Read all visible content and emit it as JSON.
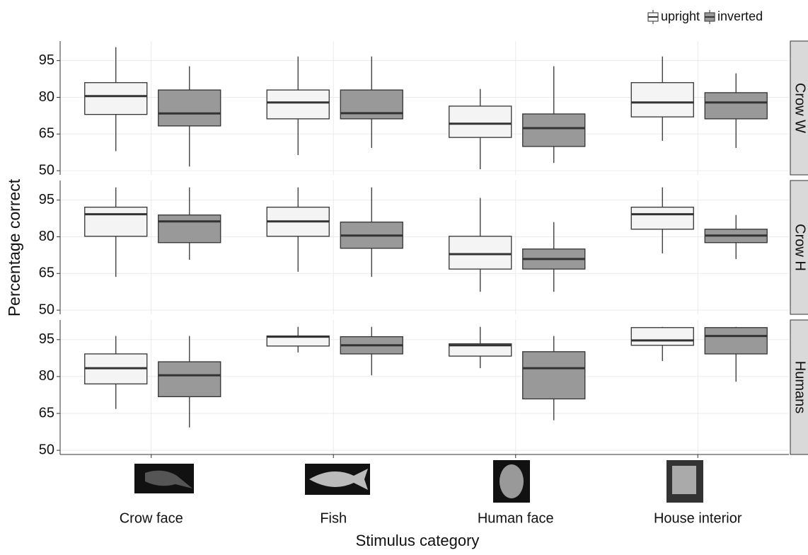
{
  "chart_data": {
    "type": "box",
    "x_label": "Stimulus category",
    "y_label": "Percentage correct",
    "categories": [
      "Crow face",
      "Fish",
      "Human face",
      "House interior"
    ],
    "facets": [
      "Crow W",
      "Crow H",
      "Humans"
    ],
    "ylim": [
      48.3,
      103
    ],
    "yticks": [
      50,
      65,
      80,
      95
    ],
    "grid": true,
    "legend": "top-right",
    "series": [
      {
        "name": "upright",
        "color": "#f4f4f4",
        "values": [
          [
            {
              "min": 58,
              "q1": 73,
              "median": 80.5,
              "q3": 86,
              "max": 100.5
            },
            {
              "min": 56.4,
              "q1": 71.2,
              "median": 77.9,
              "q3": 83,
              "max": 96.7
            },
            {
              "min": 50.6,
              "q1": 63.6,
              "median": 69.2,
              "q3": 76.4,
              "max": 83.4
            },
            {
              "min": 62.2,
              "q1": 72,
              "median": 77.9,
              "q3": 86,
              "max": 96.7
            }
          ],
          [
            {
              "min": 63.6,
              "q1": 80.2,
              "median": 89.2,
              "q3": 92.1,
              "max": 100.2
            },
            {
              "min": 65.7,
              "q1": 80.2,
              "median": 86.3,
              "q3": 92.1,
              "max": 100.2
            },
            {
              "min": 57.5,
              "q1": 66.8,
              "median": 72.9,
              "q3": 80.2,
              "max": 95.9
            },
            {
              "min": 73.2,
              "q1": 83.1,
              "median": 89.2,
              "q3": 92.1,
              "max": 100.2
            }
          ],
          [
            {
              "min": 66.8,
              "q1": 77,
              "median": 83.4,
              "q3": 89.2,
              "max": 96.5
            },
            {
              "min": 89.8,
              "q1": 92.4,
              "median": 96.2,
              "q3": 96.5,
              "max": 100.2
            },
            {
              "min": 83.4,
              "q1": 88.3,
              "median": 92.7,
              "q3": 93.3,
              "max": 100.2
            },
            {
              "min": 86.3,
              "q1": 92.7,
              "median": 94.7,
              "q3": 99.9,
              "max": 100.2
            }
          ]
        ]
      },
      {
        "name": "inverted",
        "color": "#999999",
        "values": [
          [
            {
              "min": 51.7,
              "q1": 68.3,
              "median": 73.4,
              "q3": 83,
              "max": 92.7
            },
            {
              "min": 59.3,
              "q1": 71.2,
              "median": 73.5,
              "q3": 83,
              "max": 96.7
            },
            {
              "min": 53.2,
              "q1": 59.9,
              "median": 67.4,
              "q3": 73.2,
              "max": 92.7
            },
            {
              "min": 59.3,
              "q1": 71.2,
              "median": 77.9,
              "q3": 81.9,
              "max": 89.8
            }
          ],
          [
            {
              "min": 70.6,
              "q1": 77.6,
              "median": 86.3,
              "q3": 88.9,
              "max": 100.2
            },
            {
              "min": 63.6,
              "q1": 75.3,
              "median": 80.5,
              "q3": 86,
              "max": 100.2
            },
            {
              "min": 57.5,
              "q1": 66.8,
              "median": 70.9,
              "q3": 75,
              "max": 86
            },
            {
              "min": 70.9,
              "q1": 77.6,
              "median": 80.5,
              "q3": 83.1,
              "max": 88.9
            }
          ],
          [
            {
              "min": 59.3,
              "q1": 71.8,
              "median": 80.5,
              "q3": 86,
              "max": 96.5
            },
            {
              "min": 80.5,
              "q1": 89.2,
              "median": 92.7,
              "q3": 96.2,
              "max": 100.2
            },
            {
              "min": 62.2,
              "q1": 70.9,
              "median": 83.4,
              "q3": 90.1,
              "max": 96.5
            },
            {
              "min": 77.9,
              "q1": 89.2,
              "median": 96.5,
              "q3": 99.9,
              "max": 100.2
            }
          ]
        ]
      }
    ]
  }
}
